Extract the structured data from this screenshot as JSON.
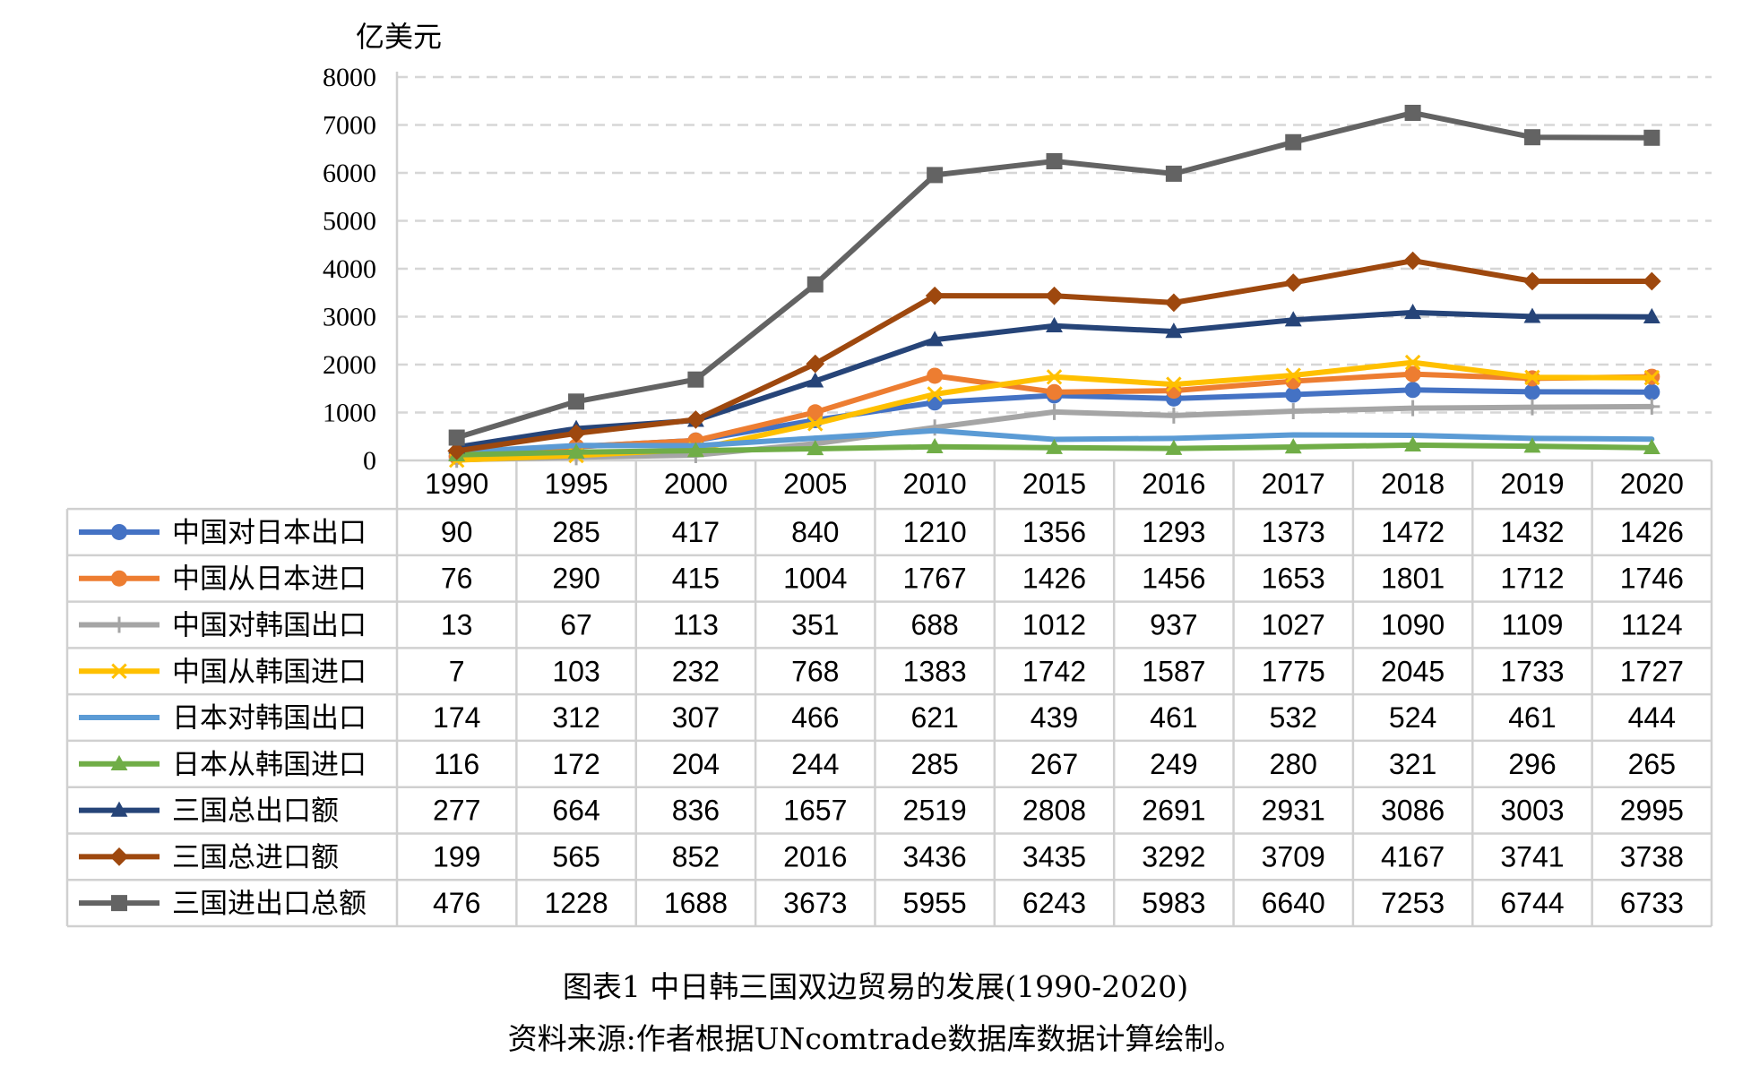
{
  "chart_data": {
    "type": "line",
    "unit_label": "亿美元",
    "ylim": [
      0,
      8000
    ],
    "yticks": [
      0,
      1000,
      2000,
      3000,
      4000,
      5000,
      6000,
      7000,
      8000
    ],
    "grid": true,
    "legend": "data-table-left",
    "categories": [
      "1990",
      "1995",
      "2000",
      "2005",
      "2010",
      "2015",
      "2016",
      "2017",
      "2018",
      "2019",
      "2020"
    ],
    "series": [
      {
        "name": "中国对日本出口",
        "color": "#4472C4",
        "marker": "circle",
        "values": [
          90,
          285,
          417,
          840,
          1210,
          1356,
          1293,
          1373,
          1472,
          1432,
          1426
        ]
      },
      {
        "name": "中国从日本进口",
        "color": "#ED7D31",
        "marker": "circle",
        "values": [
          76,
          290,
          415,
          1004,
          1767,
          1426,
          1456,
          1653,
          1801,
          1712,
          1746
        ]
      },
      {
        "name": "中国对韩国出口",
        "color": "#A5A5A5",
        "marker": "plus",
        "values": [
          13,
          67,
          113,
          351,
          688,
          1012,
          937,
          1027,
          1090,
          1109,
          1124
        ]
      },
      {
        "name": "中国从韩国进口",
        "color": "#FFC000",
        "marker": "x",
        "values": [
          7,
          103,
          232,
          768,
          1383,
          1742,
          1587,
          1775,
          2045,
          1733,
          1727
        ]
      },
      {
        "name": "日本对韩国出口",
        "color": "#5B9BD5",
        "marker": "none",
        "values": [
          174,
          312,
          307,
          466,
          621,
          439,
          461,
          532,
          524,
          461,
          444
        ]
      },
      {
        "name": "日本从韩国进口",
        "color": "#70AD47",
        "marker": "triangle",
        "values": [
          116,
          172,
          204,
          244,
          285,
          267,
          249,
          280,
          321,
          296,
          265
        ]
      },
      {
        "name": "三国总出口额",
        "color": "#264478",
        "marker": "triangle",
        "values": [
          277,
          664,
          836,
          1657,
          2519,
          2808,
          2691,
          2931,
          3086,
          3003,
          2995
        ]
      },
      {
        "name": "三国总进口额",
        "color": "#9E480E",
        "marker": "diamond",
        "values": [
          199,
          565,
          852,
          2016,
          3436,
          3435,
          3292,
          3709,
          4167,
          3741,
          3738
        ]
      },
      {
        "name": "三国进出口总额",
        "color": "#636363",
        "marker": "square",
        "values": [
          476,
          1228,
          1688,
          3673,
          5955,
          6243,
          5983,
          6640,
          7253,
          6744,
          6733
        ]
      }
    ]
  },
  "caption": "图表1  中日韩三国双边贸易的发展(1990-2020)",
  "source": "资料来源:作者根据UNcomtrade数据库数据计算绘制。"
}
